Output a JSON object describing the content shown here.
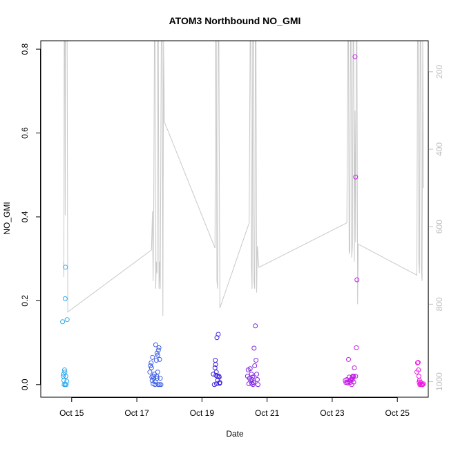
{
  "chart_data": {
    "type": "scatter",
    "title": "ATOM3 Northbound NO_GMI",
    "xlabel": "Date",
    "ylabel": "NO_GMI",
    "x_domain_days": [
      14.05,
      25.95
    ],
    "x_ticks": [
      {
        "day": 15,
        "label": "Oct 15"
      },
      {
        "day": 17,
        "label": "Oct 17"
      },
      {
        "day": 19,
        "label": "Oct 19"
      },
      {
        "day": 21,
        "label": "Oct 21"
      },
      {
        "day": 23,
        "label": "Oct 23"
      },
      {
        "day": 25,
        "label": "Oct 25"
      }
    ],
    "ylim": [
      -0.03,
      0.82
    ],
    "y_ticks": [
      0.0,
      0.2,
      0.4,
      0.6,
      0.8
    ],
    "y_tick_labels": [
      "0.0",
      "0.2",
      "0.4",
      "0.6",
      "0.8"
    ],
    "right_axis": {
      "color": "#bebebe",
      "reversed": true,
      "lim": [
        1040,
        120
      ],
      "ticks": [
        200,
        400,
        600,
        800,
        1000
      ],
      "tick_labels": [
        "200",
        "400",
        "600",
        "800",
        "1000"
      ]
    },
    "grid": false,
    "legend": "none",
    "pressure_series": {
      "name": "",
      "color": "#c8c8c8",
      "points": [
        [
          14.75,
          690
        ],
        [
          14.76,
          730
        ],
        [
          14.77,
          120
        ],
        [
          14.79,
          110
        ],
        [
          14.8,
          570
        ],
        [
          14.81,
          120
        ],
        [
          14.84,
          110
        ],
        [
          14.86,
          120
        ],
        [
          14.88,
          820
        ],
        [
          17.45,
          660
        ],
        [
          17.48,
          560
        ],
        [
          17.5,
          740
        ],
        [
          17.52,
          540
        ],
        [
          17.54,
          120
        ],
        [
          17.56,
          110
        ],
        [
          17.58,
          760
        ],
        [
          17.6,
          690
        ],
        [
          17.62,
          720
        ],
        [
          17.64,
          120
        ],
        [
          17.66,
          110
        ],
        [
          17.68,
          760
        ],
        [
          17.7,
          690
        ],
        [
          17.72,
          760
        ],
        [
          17.75,
          120
        ],
        [
          17.78,
          110
        ],
        [
          17.8,
          830
        ],
        [
          17.82,
          120
        ],
        [
          17.85,
          330
        ],
        [
          19.4,
          655
        ],
        [
          19.42,
          120
        ],
        [
          19.44,
          110
        ],
        [
          19.46,
          740
        ],
        [
          19.48,
          760
        ],
        [
          19.5,
          120
        ],
        [
          19.52,
          110
        ],
        [
          19.55,
          810
        ],
        [
          20.45,
          590
        ],
        [
          20.48,
          120
        ],
        [
          20.5,
          110
        ],
        [
          20.52,
          700
        ],
        [
          20.54,
          760
        ],
        [
          20.56,
          120
        ],
        [
          20.58,
          110
        ],
        [
          20.6,
          740
        ],
        [
          20.62,
          760
        ],
        [
          20.64,
          120
        ],
        [
          20.66,
          110
        ],
        [
          20.68,
          770
        ],
        [
          20.7,
          650
        ],
        [
          20.75,
          705
        ],
        [
          23.45,
          590
        ],
        [
          23.48,
          120
        ],
        [
          23.5,
          110
        ],
        [
          23.52,
          670
        ],
        [
          23.54,
          660
        ],
        [
          23.56,
          120
        ],
        [
          23.58,
          110
        ],
        [
          23.6,
          680
        ],
        [
          23.62,
          650
        ],
        [
          23.64,
          120
        ],
        [
          23.66,
          110
        ],
        [
          23.68,
          690
        ],
        [
          23.7,
          300
        ],
        [
          23.72,
          640
        ],
        [
          23.74,
          120
        ],
        [
          23.76,
          110
        ],
        [
          23.78,
          800
        ],
        [
          23.8,
          645
        ],
        [
          25.6,
          725
        ],
        [
          25.62,
          120
        ],
        [
          25.64,
          110
        ],
        [
          25.66,
          690
        ],
        [
          25.68,
          720
        ],
        [
          25.7,
          120
        ],
        [
          25.72,
          110
        ],
        [
          25.74,
          710
        ],
        [
          25.76,
          740
        ],
        [
          25.78,
          120
        ],
        [
          25.8,
          500
        ]
      ]
    },
    "series": [
      {
        "name": "",
        "color": "#29a8ee",
        "points": [
          [
            14.72,
            0.15
          ],
          [
            14.75,
            0.025
          ],
          [
            14.76,
            0.01
          ],
          [
            14.77,
            0.0
          ],
          [
            14.78,
            0.035
          ],
          [
            14.79,
            0.03
          ],
          [
            14.8,
            0.205
          ],
          [
            14.81,
            0.28
          ],
          [
            14.82,
            0.02
          ],
          [
            14.83,
            0.0
          ],
          [
            14.85,
            0.008
          ],
          [
            14.86,
            0.155
          ],
          [
            14.8,
            0.0
          ],
          [
            14.74,
            0.02
          ]
        ]
      },
      {
        "name": "",
        "color": "#3b5de6",
        "points": [
          [
            17.4,
            0.03
          ],
          [
            17.42,
            0.045
          ],
          [
            17.44,
            0.052
          ],
          [
            17.45,
            0.04
          ],
          [
            17.46,
            0.018
          ],
          [
            17.48,
            0.065
          ],
          [
            17.5,
            0.002
          ],
          [
            17.52,
            0.015
          ],
          [
            17.54,
            0.025
          ],
          [
            17.56,
            0.007
          ],
          [
            17.58,
            0.095
          ],
          [
            17.6,
            0.058
          ],
          [
            17.61,
            0.02
          ],
          [
            17.62,
            0.075
          ],
          [
            17.64,
            0.03
          ],
          [
            17.66,
            0.082
          ],
          [
            17.68,
            0.088
          ],
          [
            17.7,
            0.06
          ],
          [
            17.72,
            0.015
          ],
          [
            17.74,
            0.0
          ],
          [
            17.56,
            0.0
          ],
          [
            17.66,
            0.0
          ],
          [
            17.62,
            0.015
          ],
          [
            17.5,
            0.02
          ],
          [
            17.47,
            0.01
          ],
          [
            17.7,
            0.0
          ],
          [
            17.64,
            0.07
          ]
        ]
      },
      {
        "name": "",
        "color": "#3a21e0",
        "points": [
          [
            19.35,
            0.025
          ],
          [
            19.38,
            0.0
          ],
          [
            19.4,
            0.04
          ],
          [
            19.41,
            0.058
          ],
          [
            19.42,
            0.048
          ],
          [
            19.43,
            0.022
          ],
          [
            19.44,
            0.03
          ],
          [
            19.46,
            0.112
          ],
          [
            19.48,
            0.01
          ],
          [
            19.5,
            0.12
          ],
          [
            19.52,
            0.02
          ],
          [
            19.53,
            0.018
          ],
          [
            19.55,
            0.005
          ],
          [
            19.54,
            0.003
          ],
          [
            19.45,
            0.002
          ],
          [
            19.47,
            0.02
          ]
        ]
      },
      {
        "name": "",
        "color": "#7e22e0",
        "points": [
          [
            20.4,
            0.02
          ],
          [
            20.42,
            0.035
          ],
          [
            20.44,
            0.002
          ],
          [
            20.46,
            0.015
          ],
          [
            20.48,
            0.038
          ],
          [
            20.5,
            0.01
          ],
          [
            20.52,
            0.025
          ],
          [
            20.54,
            0.012
          ],
          [
            20.56,
            0.018
          ],
          [
            20.58,
            0.005
          ],
          [
            20.6,
            0.087
          ],
          [
            20.62,
            0.045
          ],
          [
            20.64,
            0.14
          ],
          [
            20.66,
            0.058
          ],
          [
            20.68,
            0.025
          ],
          [
            20.7,
            0.012
          ],
          [
            20.72,
            0.0
          ],
          [
            20.57,
            0.0
          ],
          [
            20.53,
            0.003
          ]
        ]
      },
      {
        "name": "",
        "color": "#c21de5",
        "points": [
          [
            23.4,
            0.01
          ],
          [
            23.42,
            0.005
          ],
          [
            23.45,
            0.012
          ],
          [
            23.48,
            0.004
          ],
          [
            23.5,
            0.06
          ],
          [
            23.52,
            0.018
          ],
          [
            23.54,
            0.008
          ],
          [
            23.56,
            0.01
          ],
          [
            23.58,
            0.012
          ],
          [
            23.6,
            0.015
          ],
          [
            23.62,
            0.012
          ],
          [
            23.64,
            0.018
          ],
          [
            23.66,
            0.02
          ],
          [
            23.68,
            0.04
          ],
          [
            23.7,
            0.782
          ],
          [
            23.72,
            0.495
          ],
          [
            23.74,
            0.088
          ],
          [
            23.76,
            0.25
          ],
          [
            23.6,
            0.0
          ],
          [
            23.66,
            0.006
          ],
          [
            23.72,
            0.02
          ],
          [
            23.55,
            0.005
          ],
          [
            23.63,
            0.02
          ],
          [
            23.47,
            0.006
          ]
        ]
      },
      {
        "name": "",
        "color": "#ef18e0",
        "points": [
          [
            25.6,
            0.03
          ],
          [
            25.62,
            0.052
          ],
          [
            25.64,
            0.053
          ],
          [
            25.66,
            0.02
          ],
          [
            25.68,
            0.01
          ],
          [
            25.7,
            0.002
          ],
          [
            25.72,
            0.005
          ],
          [
            25.74,
            0.0
          ],
          [
            25.76,
            0.0
          ],
          [
            25.78,
            0.0
          ],
          [
            25.8,
            0.002
          ],
          [
            25.65,
            0.035
          ],
          [
            25.67,
            0.006
          ],
          [
            25.69,
            0.0
          ]
        ]
      }
    ]
  }
}
